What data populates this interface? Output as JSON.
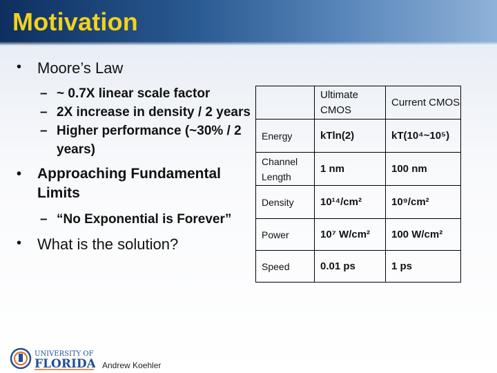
{
  "slide": {
    "title": "Motivation",
    "footer_author": "Andrew Koehler",
    "logo_text": {
      "line1": "UNIVERSITY OF",
      "line2": "FLORIDA"
    }
  },
  "bullets": [
    {
      "text": "Moore’s Law",
      "subs": [
        "~ 0.7X linear scale factor",
        " 2X increase in density / 2 years",
        " Higher performance (~30% / 2 years)"
      ]
    },
    {
      "text": "Approaching Fundamental Limits",
      "subs": [
        "“No Exponential is Forever”"
      ]
    },
    {
      "text": "What is the solution?",
      "subs": []
    }
  ],
  "table": {
    "columns": [
      "",
      "Ultimate CMOS",
      "Current CMOS"
    ],
    "rows": [
      {
        "label": "Energy",
        "ultimate": "kTln(2)",
        "current": "kT(10⁴~10⁵)"
      },
      {
        "label": "Channel Length",
        "ultimate": "1 nm",
        "current": "100 nm"
      },
      {
        "label": "Density",
        "ultimate": "10¹⁴/cm²",
        "current": "10⁹/cm²"
      },
      {
        "label": "Power",
        "ultimate": "10⁷ W/cm²",
        "current": "100 W/cm²"
      },
      {
        "label": "Speed",
        "ultimate": "0.01 ps",
        "current": "1 ps"
      }
    ]
  },
  "colors": {
    "title": "#f2d21b",
    "header_dark": "#0e2f5f",
    "logo_blue": "#1f4f93",
    "logo_orange": "#e26a1b"
  }
}
